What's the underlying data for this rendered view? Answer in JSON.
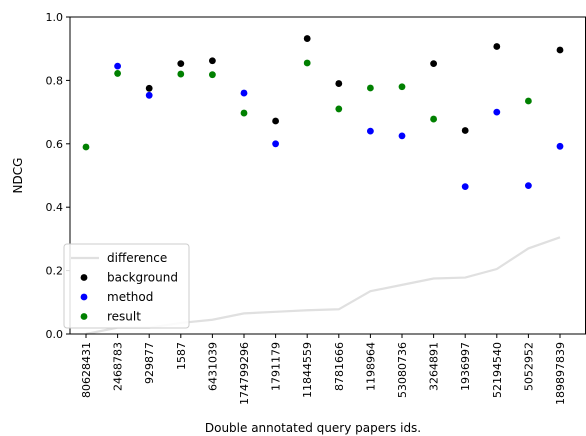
{
  "chart_data": {
    "type": "scatter",
    "title": "",
    "xlabel": "Double annotated query papers ids.",
    "ylabel": "NDCG",
    "ylim": [
      0.0,
      1.0
    ],
    "yticks": [
      "0.0",
      "0.2",
      "0.4",
      "0.6",
      "0.8",
      "1.0"
    ],
    "grid": false,
    "legend_position": "lower-left",
    "categories": [
      "80628431",
      "2468783",
      "929877",
      "1587",
      "6431039",
      "174799296",
      "1791179",
      "11844559",
      "8781666",
      "1198964",
      "53080736",
      "3264891",
      "1936997",
      "52194540",
      "5052952",
      "189897839"
    ],
    "series": [
      {
        "name": "difference",
        "kind": "line",
        "color": "#e0e0e0",
        "values": [
          0.0,
          0.02,
          0.02,
          0.035,
          0.045,
          0.065,
          0.07,
          0.075,
          0.078,
          0.135,
          0.155,
          0.175,
          0.178,
          0.205,
          0.27,
          0.305
        ]
      },
      {
        "name": "background",
        "kind": "scatter",
        "color": "#000000",
        "values": [
          null,
          null,
          0.775,
          0.853,
          0.862,
          null,
          0.672,
          0.932,
          0.79,
          null,
          null,
          0.853,
          0.642,
          0.907,
          null,
          0.896
        ]
      },
      {
        "name": "method",
        "kind": "scatter",
        "color": "#0000ff",
        "values": [
          null,
          0.845,
          0.753,
          null,
          null,
          0.76,
          0.6,
          null,
          null,
          0.64,
          0.625,
          null,
          0.465,
          0.7,
          0.468,
          0.592
        ]
      },
      {
        "name": "result",
        "kind": "scatter",
        "color": "#008000",
        "values": [
          0.59,
          0.822,
          null,
          0.82,
          0.818,
          0.697,
          null,
          0.855,
          0.71,
          0.776,
          0.78,
          0.678,
          null,
          null,
          0.735,
          null
        ]
      }
    ]
  }
}
